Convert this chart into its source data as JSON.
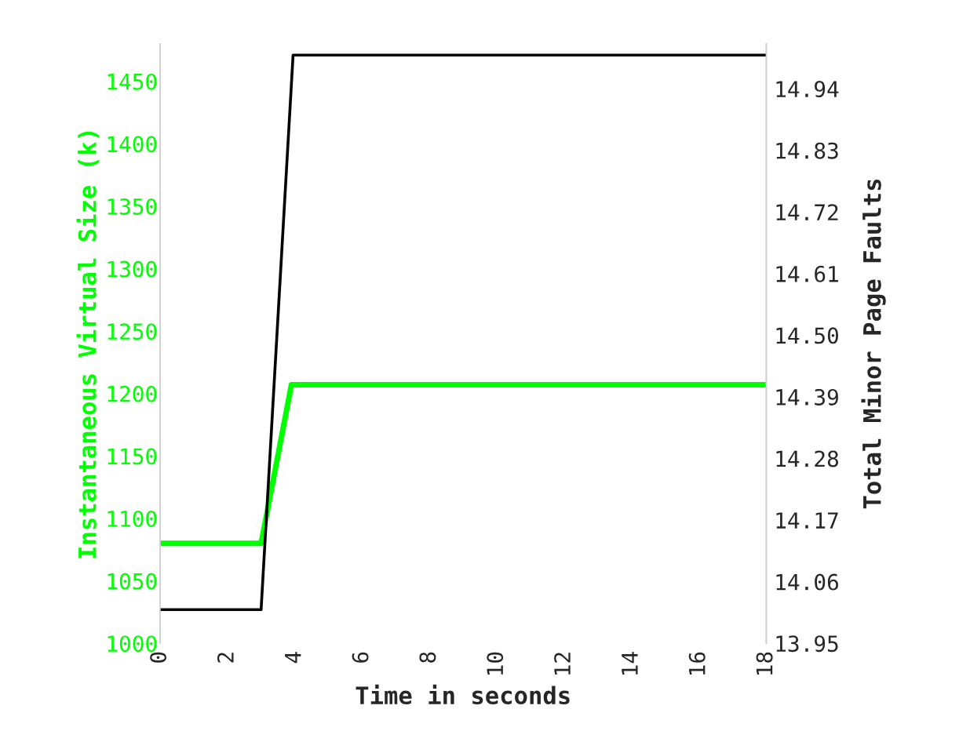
{
  "chart_data": {
    "type": "line",
    "xlabel": "Time in seconds",
    "ylabel": "Instantaneous Virtual Size (k)",
    "y2label": "Total Minor Page Faults",
    "xlim": [
      0,
      18
    ],
    "xticks": [
      0,
      2,
      4,
      6,
      8,
      10,
      12,
      14,
      16,
      18
    ],
    "ylim": [
      1000,
      1480
    ],
    "yticks": [
      1000,
      1050,
      1100,
      1150,
      1200,
      1250,
      1300,
      1350,
      1400,
      1450
    ],
    "y2lim": [
      13.95,
      15.02
    ],
    "y2ticks": [
      13.95,
      14.06,
      14.17,
      14.28,
      14.39,
      {
        "value": 14.5,
        "label": "14.50"
      },
      14.61,
      14.72,
      14.83,
      14.94
    ],
    "grid": false,
    "legend": false,
    "marker": "none",
    "line_style": "solid",
    "series": [
      {
        "color": "#00ff00",
        "axis": "y",
        "x": [
          0,
          3.0,
          3.9,
          18
        ],
        "values": [
          1080,
          1080,
          1207,
          1207
        ]
      },
      {
        "color": "#000000",
        "axis": "y2",
        "x": [
          0,
          3.0,
          3.95,
          18
        ],
        "values": [
          14.01,
          14.01,
          15.0,
          15.0
        ]
      }
    ]
  }
}
